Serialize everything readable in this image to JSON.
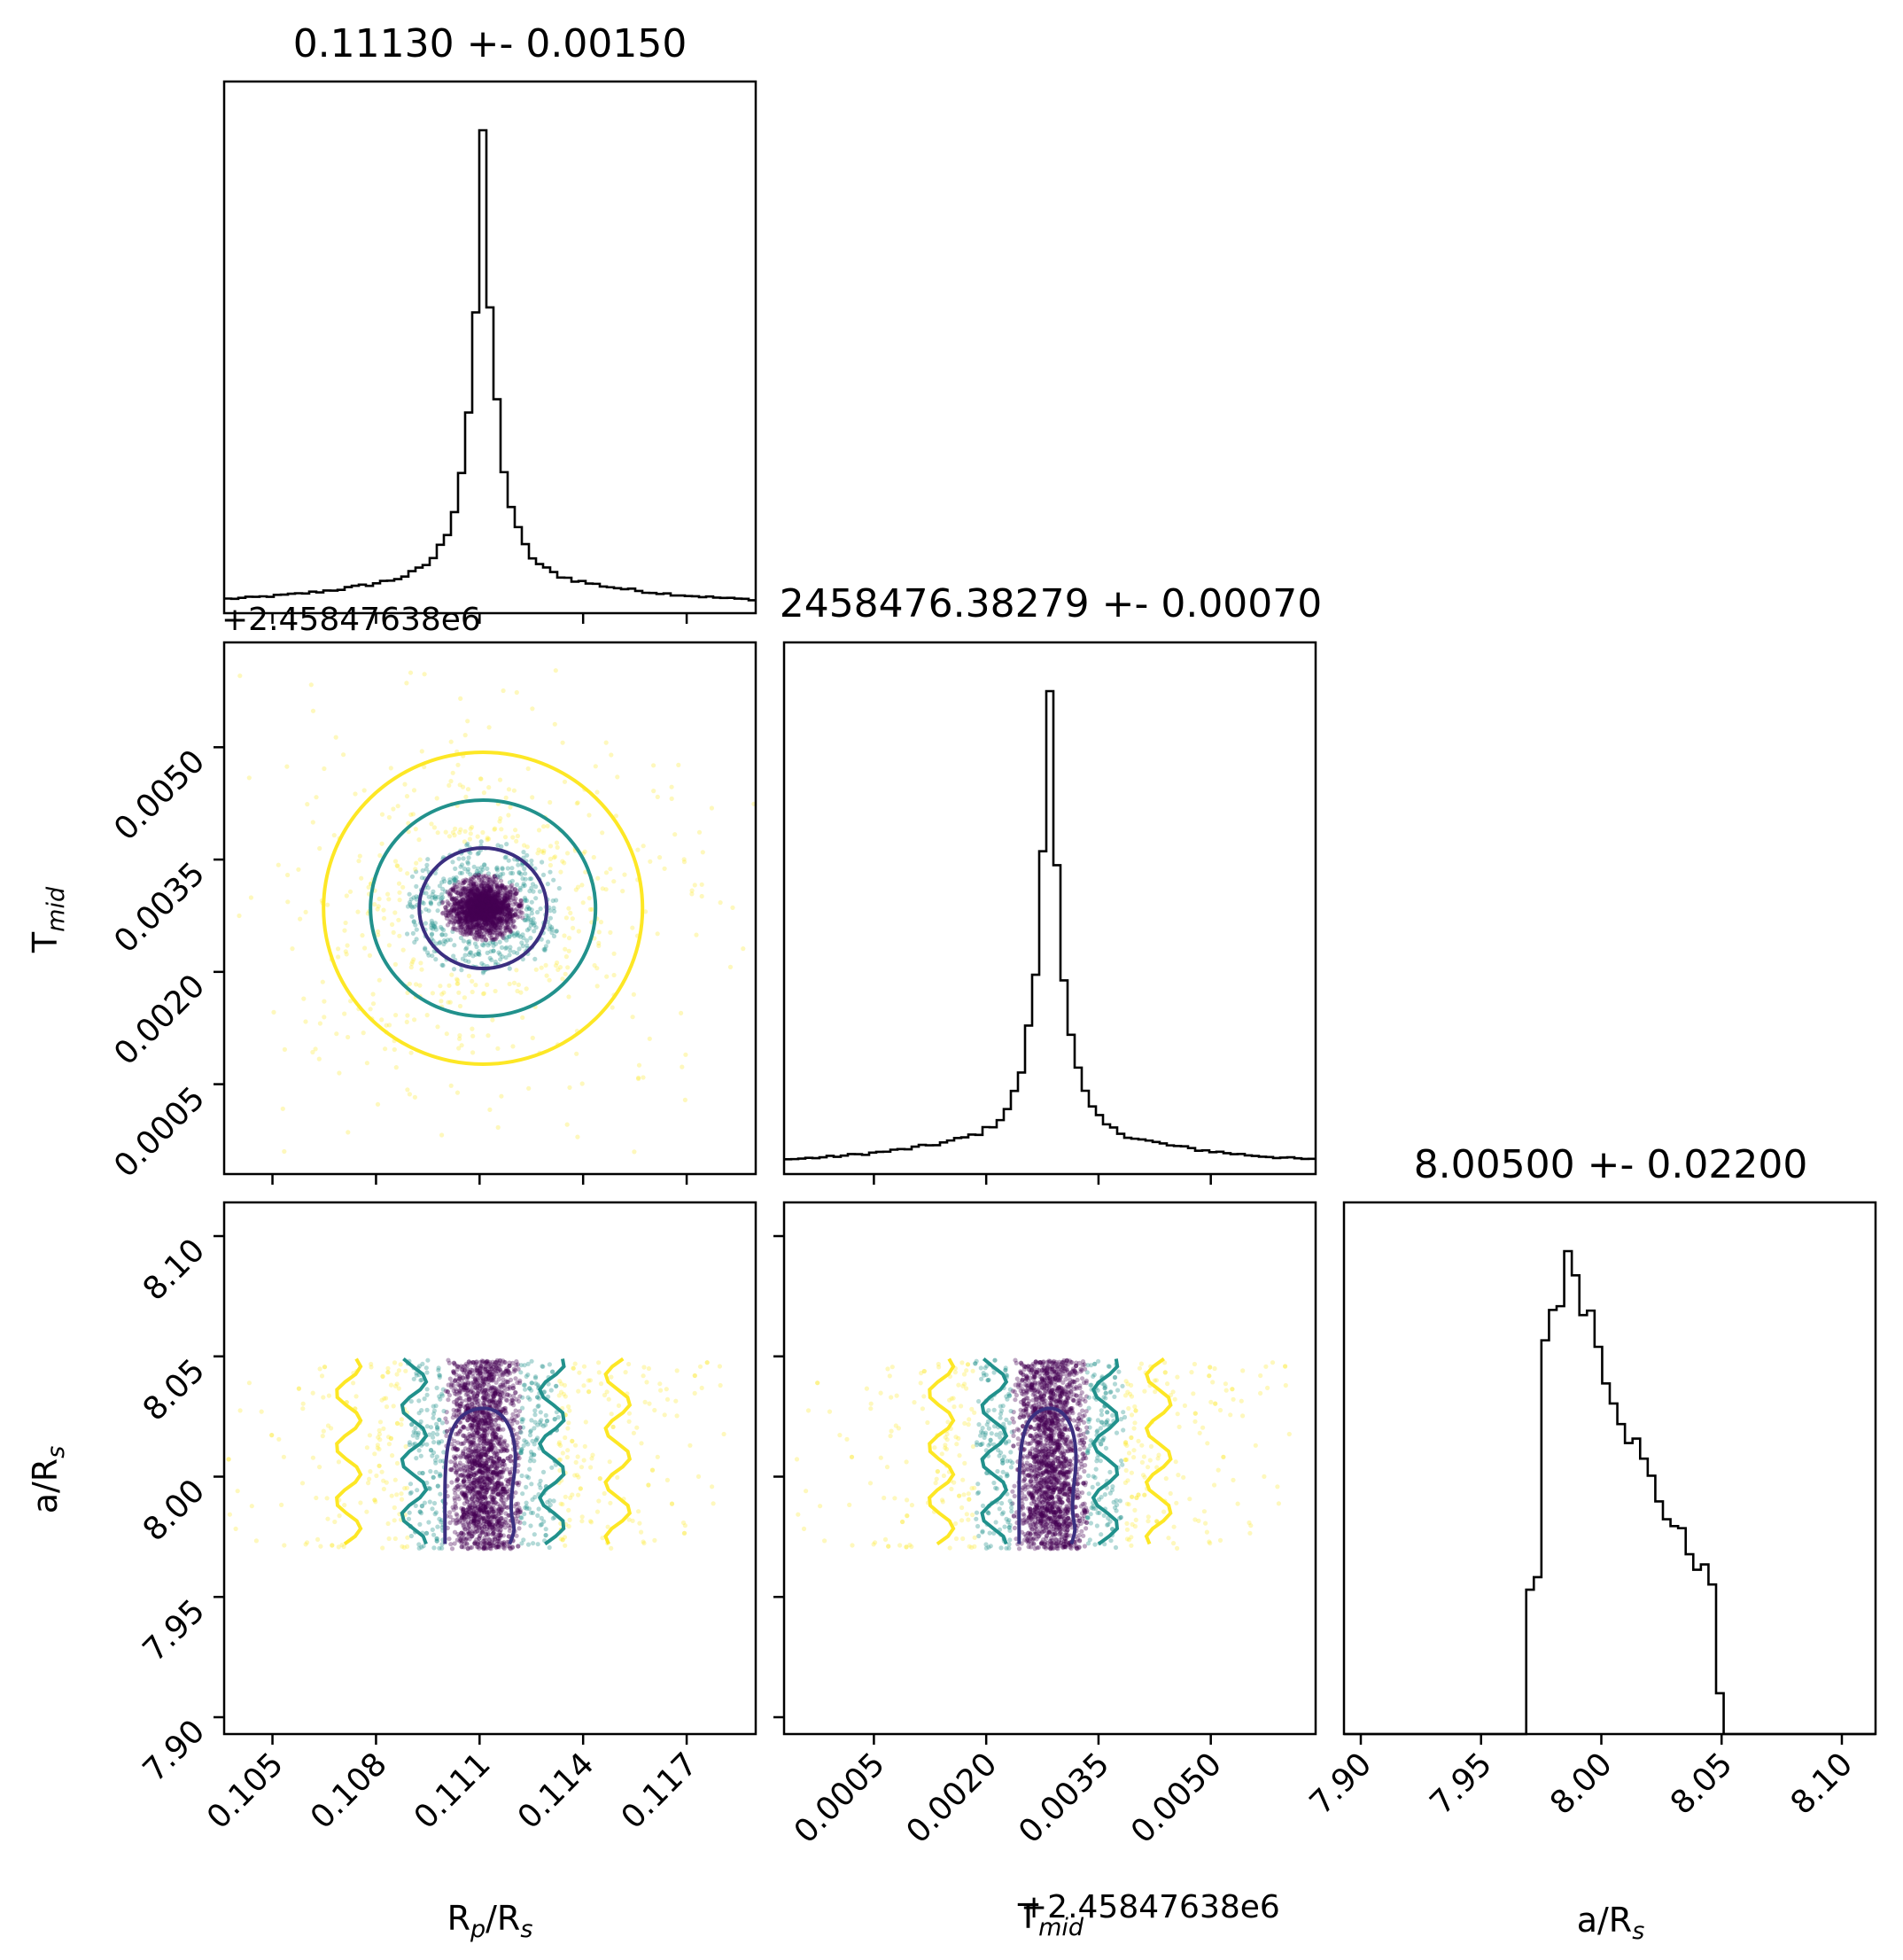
{
  "chart_data": {
    "type": "corner",
    "parameters": [
      {
        "key": "rprs",
        "label_main": "R",
        "label_sub": "p",
        "label_tail": "/R",
        "label_sub2": "s"
      },
      {
        "key": "tmid",
        "label_main": "T",
        "label_sub": "mid",
        "label_tail": "",
        "label_sub2": ""
      },
      {
        "key": "ars",
        "label_main": "a/R",
        "label_sub": "s",
        "label_tail": "",
        "label_sub2": ""
      }
    ],
    "titles": {
      "rprs": "0.11130 +- 0.00150",
      "tmid": "2458476.38279 +- 0.00070",
      "ars": "8.00500 +- 0.02200"
    },
    "offset_text": "+2.45847638e6",
    "rprs": {
      "range": [
        0.1036,
        0.119
      ],
      "ticks": [
        0.105,
        0.108,
        0.111,
        0.114,
        0.117
      ],
      "tick_labels": [
        "0.105",
        "0.108",
        "0.111",
        "0.114",
        "0.117"
      ],
      "hist_center": 0.1111,
      "hist_core_width": 0.00042,
      "hist_tail_width": 0.0035
    },
    "tmid": {
      "range": [
        -0.0007,
        0.0064
      ],
      "ticks": [
        0.0005,
        0.002,
        0.0035,
        0.005
      ],
      "tick_labels": [
        "0.0005",
        "0.0020",
        "0.0035",
        "0.0050"
      ],
      "hist_center": 0.00285,
      "hist_core_width": 0.00018,
      "hist_tail_width": 0.0016
    },
    "ars": {
      "range": [
        7.893,
        8.114
      ],
      "ticks": [
        7.9,
        7.95,
        8.0,
        8.05,
        8.1
      ],
      "tick_labels": [
        "7.90",
        "7.95",
        "8.00",
        "8.05",
        "8.10"
      ],
      "hist_low": 7.97,
      "hist_high": 8.05,
      "hist_peak": 7.99
    },
    "contour_levels": 3,
    "colors": {
      "level1": "#3b2f80",
      "level2": "#21918c",
      "level3": "#fde725",
      "points_dense": "#440154",
      "points_mid": "#21918c",
      "points_outer": "#fde725"
    }
  }
}
